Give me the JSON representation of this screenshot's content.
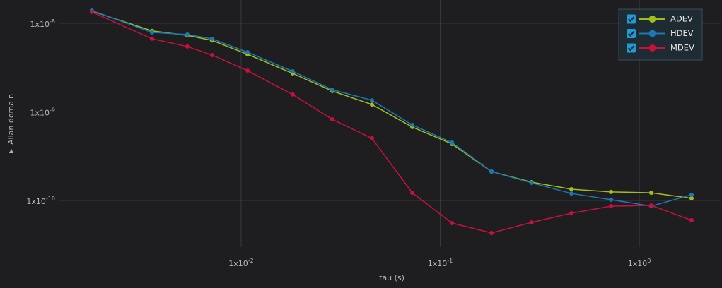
{
  "chart_data": {
    "type": "line",
    "x_label": "tau (s)",
    "y_label": "Allan domain",
    "log_x": true,
    "log_y": true,
    "grid": true,
    "legend_position": "upper right",
    "xlim": [
      0.001233,
      2.58
    ],
    "ylim": [
      2.98e-11,
      1.83e-08
    ],
    "xticks": [
      {
        "value": 0.01,
        "label": "1x10",
        "exponent": "-2"
      },
      {
        "value": 0.1,
        "label": "1x10",
        "exponent": "-1"
      },
      {
        "value": 1,
        "label": "1x10",
        "exponent": "0"
      }
    ],
    "yticks": [
      {
        "value": 1e-08,
        "label": "1x10",
        "exponent": "-8"
      },
      {
        "value": 1e-09,
        "label": "1x10",
        "exponent": "-9"
      },
      {
        "value": 1e-10,
        "label": "1x10",
        "exponent": "-10"
      }
    ],
    "x": [
      0.00178,
      0.00357,
      0.00537,
      0.00715,
      0.01077,
      0.01815,
      0.0287,
      0.0454,
      0.0724,
      0.1146,
      0.181,
      0.288,
      0.456,
      0.721,
      1.148,
      1.83
    ],
    "series": [
      {
        "name": "ADEV",
        "color": "#9fbf1a",
        "values": [
          1.37e-08,
          8.2e-09,
          7.3e-09,
          6.4e-09,
          4.46e-09,
          2.72e-09,
          1.72e-09,
          1.21e-09,
          6.75e-10,
          4.34e-10,
          2.12e-10,
          1.61e-10,
          1.34e-10,
          1.25e-10,
          1.22e-10,
          1.06e-10
        ]
      },
      {
        "name": "HDEV",
        "color": "#1a78b4",
        "values": [
          1.39e-08,
          7.88e-09,
          7.46e-09,
          6.68e-09,
          4.71e-09,
          2.87e-09,
          1.78e-09,
          1.35e-09,
          7.13e-10,
          4.5e-10,
          2.12e-10,
          1.58e-10,
          1.2e-10,
          1.02e-10,
          8.63e-11,
          1.16e-10
        ]
      },
      {
        "name": "MDEV",
        "color": "#c8103e",
        "values": [
          1.34e-08,
          6.68e-09,
          5.46e-09,
          4.38e-09,
          2.92e-09,
          1.57e-09,
          8.24e-10,
          5.03e-10,
          1.22e-10,
          5.56e-11,
          4.3e-11,
          5.66e-11,
          7.19e-11,
          8.63e-11,
          8.79e-11,
          5.98e-11
        ]
      }
    ]
  }
}
